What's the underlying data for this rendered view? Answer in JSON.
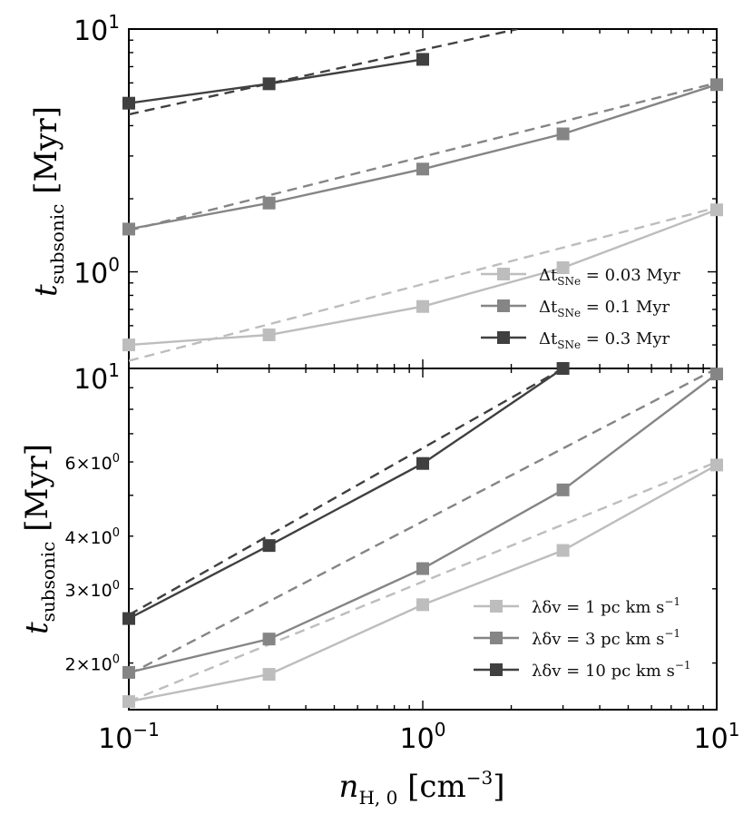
{
  "chart_data": [
    {
      "type": "line",
      "panel": "top",
      "ylabel": "t_subsonic [Myr]",
      "xscale": "log",
      "yscale": "log",
      "xlim": [
        0.1,
        10
      ],
      "ylim": [
        0.4,
        10
      ],
      "x_ticks": [
        0.1,
        1,
        10
      ],
      "y_ticks": [
        1,
        10
      ],
      "y_tick_labels": [
        "10^0",
        "10^1"
      ],
      "x": [
        0.1,
        0.3,
        1,
        3,
        10
      ],
      "series": [
        {
          "name": "Δt_SNe = 0.03 Myr",
          "legend_main": "Δt",
          "legend_sub": "SNe",
          "legend_tail": " = 0.03 Myr",
          "color": "#bdbdbd",
          "x": [
            0.1,
            0.3,
            1,
            3,
            10
          ],
          "values": [
            0.5,
            0.55,
            0.72,
            1.04,
            1.8
          ],
          "fit": {
            "x": [
              0.1,
              10
            ],
            "values": [
              0.43,
              1.84
            ]
          }
        },
        {
          "name": "Δt_SNe = 0.1 Myr",
          "legend_main": "Δt",
          "legend_sub": "SNe",
          "legend_tail": " = 0.1 Myr",
          "color": "#858585",
          "x": [
            0.1,
            0.3,
            1,
            3,
            10
          ],
          "values": [
            1.5,
            1.92,
            2.65,
            3.7,
            5.9
          ],
          "fit": {
            "x": [
              0.1,
              10
            ],
            "values": [
              1.48,
              6.0
            ]
          }
        },
        {
          "name": "Δt_SNe = 0.3 Myr",
          "legend_main": "Δt",
          "legend_sub": "SNe",
          "legend_tail": " = 0.3 Myr",
          "color": "#404040",
          "x": [
            0.1,
            0.3,
            1
          ],
          "values": [
            4.95,
            5.95,
            7.5
          ],
          "fit": {
            "x": [
              0.1,
              2.1
            ],
            "values": [
              4.45,
              10.0
            ]
          }
        }
      ],
      "legend_position": "lower-right"
    },
    {
      "type": "line",
      "panel": "bottom",
      "ylabel": "t_subsonic [Myr]",
      "xlabel": "n_H,0 [cm^-3]",
      "xscale": "log",
      "yscale": "log",
      "xlim": [
        0.1,
        10
      ],
      "ylim": [
        1.55,
        10
      ],
      "x_ticks": [
        0.1,
        1,
        10
      ],
      "x_tick_labels": [
        "10^-1",
        "10^0",
        "10^1"
      ],
      "y_ticks": [
        2,
        3,
        4,
        6,
        10
      ],
      "y_tick_labels": [
        "2×10^0",
        "3×10^0",
        "4×10^0",
        "6×10^0",
        "10^1"
      ],
      "x": [
        0.1,
        0.3,
        1,
        3,
        10
      ],
      "series": [
        {
          "name": "λδv = 1 pc km s^-1",
          "legend_main": "λδv = 1 pc km s",
          "legend_sup": "−1",
          "color": "#bdbdbd",
          "x": [
            0.1,
            0.3,
            1,
            3,
            10
          ],
          "values": [
            1.62,
            1.88,
            2.75,
            3.7,
            5.9
          ],
          "fit": {
            "x": [
              0.1,
              10
            ],
            "values": [
              1.62,
              6.0
            ]
          }
        },
        {
          "name": "λδv = 3 pc km s^-1",
          "legend_main": "λδv = 3 pc km s",
          "legend_sup": "−1",
          "color": "#858585",
          "x": [
            0.1,
            0.3,
            1,
            3,
            10
          ],
          "values": [
            1.9,
            2.28,
            3.35,
            5.15,
            9.7
          ],
          "fit": {
            "x": [
              0.1,
              10
            ],
            "values": [
              1.88,
              10.0
            ]
          }
        },
        {
          "name": "λδv = 10 pc km s^-1",
          "legend_main": "λδv = 10 pc km s",
          "legend_sup": "−1",
          "color": "#404040",
          "x": [
            0.1,
            0.3,
            1,
            3
          ],
          "values": [
            2.55,
            3.8,
            5.95,
            10.0
          ],
          "fit": {
            "x": [
              0.1,
              3
            ],
            "values": [
              2.6,
              10.0
            ]
          }
        }
      ],
      "legend_position": "lower-right"
    }
  ],
  "overlap_label": "10^1"
}
